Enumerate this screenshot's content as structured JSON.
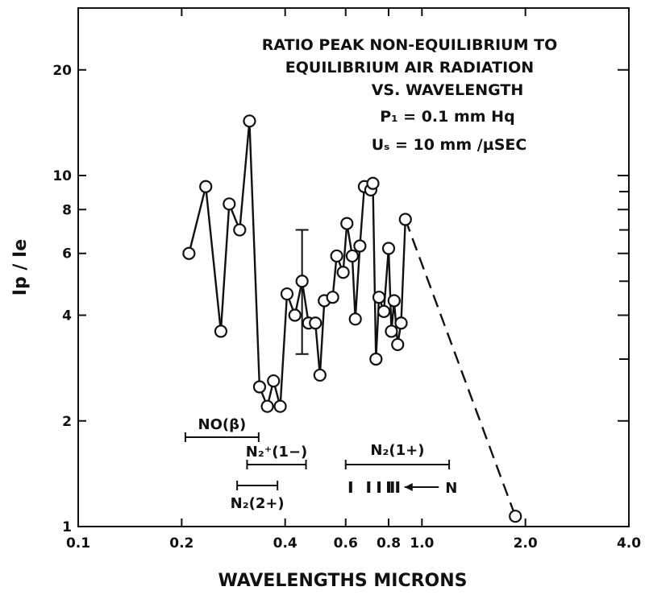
{
  "chart_data": {
    "type": "scatter",
    "title_lines": [
      "RATIO PEAK NON-EQUILIBRIUM TO",
      "EQUILIBRIUM AIR RADIATION",
      "VS. WAVELENGTH",
      "P₁ = 0.1 mm Hq",
      "Uₛ = 10 mm /µSEC"
    ],
    "xlabel": "WAVELENGTHS MICRONS",
    "ylabel": "Ip / Ie",
    "x_scale": "log",
    "y_scale": "log",
    "xlim": [
      0.1,
      4.0
    ],
    "ylim": [
      1,
      30
    ],
    "x_ticks": [
      {
        "value": 0.1,
        "label": "0.1"
      },
      {
        "value": 0.2,
        "label": "0.2"
      },
      {
        "value": 0.4,
        "label": "0.4"
      },
      {
        "value": 0.6,
        "label": "0.6"
      },
      {
        "value": 0.8,
        "label": "0.8"
      },
      {
        "value": 1.0,
        "label": "1.0"
      },
      {
        "value": 2.0,
        "label": "2.0"
      },
      {
        "value": 4.0,
        "label": "4.0"
      }
    ],
    "y_ticks": [
      {
        "value": 1,
        "label": "1"
      },
      {
        "value": 2,
        "label": "2"
      },
      {
        "value": 4,
        "label": "4"
      },
      {
        "value": 6,
        "label": "6"
      },
      {
        "value": 8,
        "label": "8"
      },
      {
        "value": 10,
        "label": "10"
      },
      {
        "value": 20,
        "label": "20"
      }
    ],
    "y_minor_ticks": [
      3,
      5,
      7,
      9
    ],
    "grid": false,
    "series": [
      {
        "style": "solid-with-circles",
        "points": [
          {
            "x": 0.21,
            "y": 6.0
          },
          {
            "x": 0.235,
            "y": 9.3
          },
          {
            "x": 0.26,
            "y": 3.6
          },
          {
            "x": 0.275,
            "y": 8.3
          },
          {
            "x": 0.295,
            "y": 7.0
          },
          {
            "x": 0.315,
            "y": 14.3
          },
          {
            "x": 0.337,
            "y": 2.5
          },
          {
            "x": 0.355,
            "y": 2.2
          },
          {
            "x": 0.37,
            "y": 2.6
          },
          {
            "x": 0.387,
            "y": 2.2
          },
          {
            "x": 0.405,
            "y": 4.6
          },
          {
            "x": 0.427,
            "y": 4.0
          },
          {
            "x": 0.448,
            "y": 5.0
          },
          {
            "x": 0.468,
            "y": 3.8
          },
          {
            "x": 0.49,
            "y": 3.8
          },
          {
            "x": 0.505,
            "y": 2.7
          },
          {
            "x": 0.52,
            "y": 4.4
          },
          {
            "x": 0.55,
            "y": 4.5
          },
          {
            "x": 0.565,
            "y": 5.9
          },
          {
            "x": 0.59,
            "y": 5.3
          },
          {
            "x": 0.605,
            "y": 7.3
          },
          {
            "x": 0.627,
            "y": 5.9
          },
          {
            "x": 0.64,
            "y": 3.9
          },
          {
            "x": 0.66,
            "y": 6.3
          },
          {
            "x": 0.68,
            "y": 9.3
          },
          {
            "x": 0.71,
            "y": 9.1
          },
          {
            "x": 0.72,
            "y": 9.5
          },
          {
            "x": 0.735,
            "y": 3.0
          },
          {
            "x": 0.75,
            "y": 4.5
          },
          {
            "x": 0.775,
            "y": 4.1
          },
          {
            "x": 0.8,
            "y": 6.2
          },
          {
            "x": 0.815,
            "y": 3.6
          },
          {
            "x": 0.83,
            "y": 4.4
          },
          {
            "x": 0.85,
            "y": 3.3
          },
          {
            "x": 0.87,
            "y": 3.8
          },
          {
            "x": 0.895,
            "y": 7.5
          }
        ]
      },
      {
        "style": "dashed-with-circle",
        "points": [
          {
            "x": 0.895,
            "y": 7.5
          },
          {
            "x": 1.87,
            "y": 1.07
          }
        ]
      }
    ],
    "error_bar": {
      "x": 0.448,
      "y_low": 3.1,
      "y_high": 7.0
    },
    "bands": [
      {
        "label": "NO(β)",
        "x_start": 0.205,
        "x_end": 0.335
      },
      {
        "label": "N₂⁺(1−)",
        "x_start": 0.31,
        "x_end": 0.46
      },
      {
        "label": "N₂(2+)",
        "x_start": 0.29,
        "x_end": 0.38
      },
      {
        "label": "N₂(1+)",
        "x_start": 0.6,
        "x_end": 1.2
      }
    ],
    "n_marker": {
      "label": "N",
      "x": [
        0.62,
        0.7,
        0.75,
        0.8,
        0.82,
        0.85
      ]
    }
  }
}
